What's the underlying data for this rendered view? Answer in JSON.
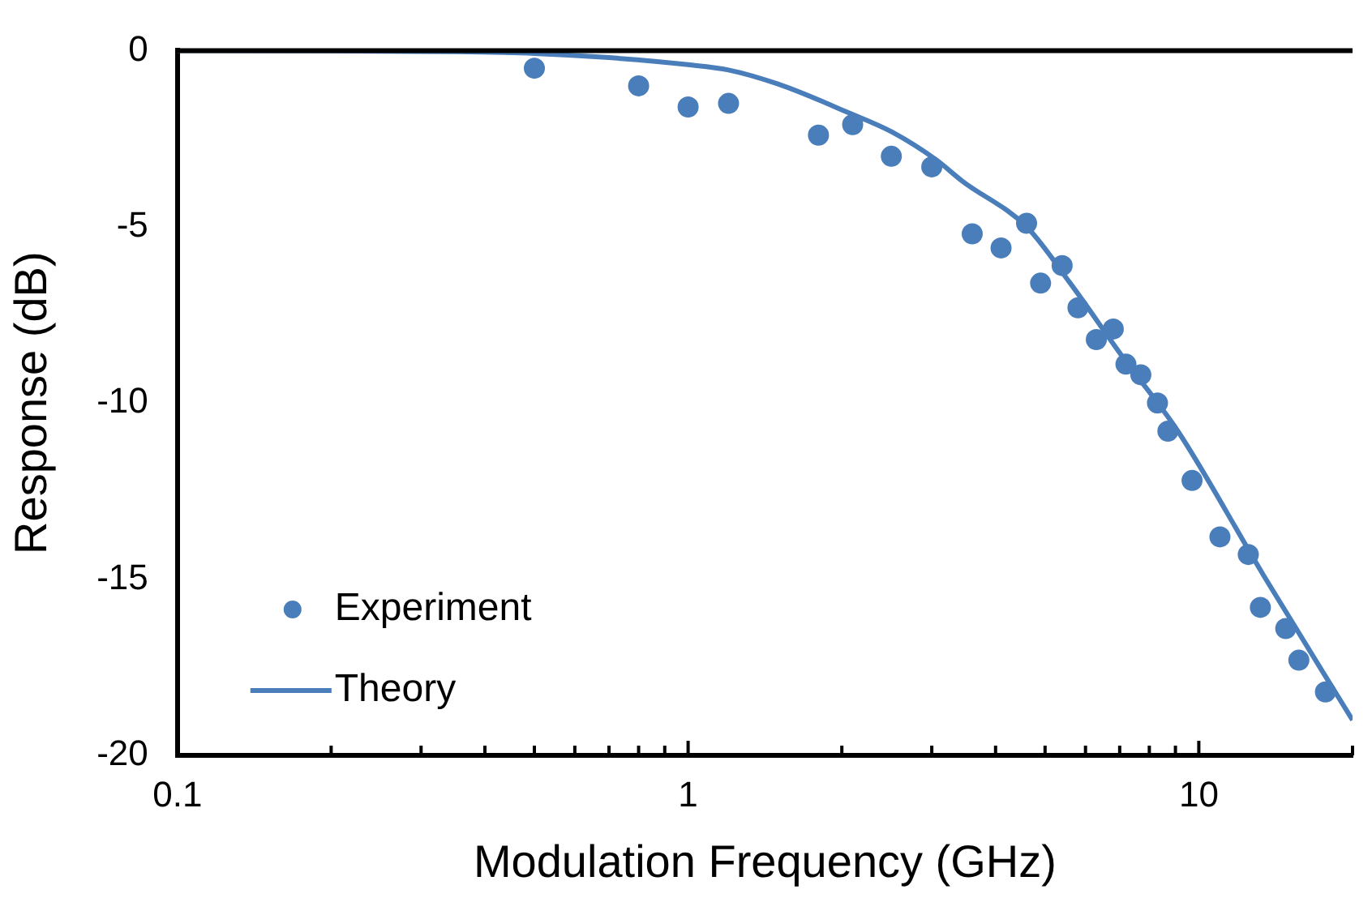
{
  "chart_data": {
    "type": "scatter",
    "xlabel": "Modulation Frequency (GHz)",
    "ylabel": "Response (dB)",
    "log": "x",
    "xlim": [
      0.1,
      20
    ],
    "xticks": [
      0.1,
      {
        "value": 0.2,
        "label": null
      },
      {
        "value": 0.3,
        "label": null
      },
      {
        "value": 0.4,
        "label": null
      },
      {
        "value": 0.5,
        "label": null
      },
      {
        "value": 0.6,
        "label": null
      },
      {
        "value": 0.7,
        "label": null
      },
      {
        "value": 0.8,
        "label": null
      },
      {
        "value": 0.9,
        "label": null
      },
      1,
      {
        "value": 2,
        "label": null
      },
      {
        "value": 3,
        "label": null
      },
      {
        "value": 4,
        "label": null
      },
      {
        "value": 5,
        "label": null
      },
      {
        "value": 6,
        "label": null
      },
      {
        "value": 7,
        "label": null
      },
      {
        "value": 8,
        "label": null
      },
      {
        "value": 9,
        "label": null
      },
      10,
      {
        "value": 20,
        "label": null
      }
    ],
    "ylim": [
      -20,
      0
    ],
    "yticks": [
      -20,
      -15,
      -10,
      -5,
      0
    ],
    "grid": false,
    "legend": "bottom left",
    "series": [
      {
        "name": "Experiment",
        "marker": "circle",
        "color": "#4a7ebb",
        "x": [
          0.5,
          0.8,
          1.0,
          1.2,
          1.8,
          2.1,
          2.5,
          3.0,
          3.6,
          4.1,
          4.6,
          4.9,
          5.4,
          5.8,
          6.3,
          6.8,
          7.2,
          7.7,
          8.3,
          8.7,
          9.7,
          11.0,
          12.5,
          13.2,
          14.8,
          15.7,
          17.7
        ],
        "values": [
          -0.5,
          -1.0,
          -1.6,
          -1.5,
          -2.4,
          -2.1,
          -3.0,
          -3.3,
          -5.2,
          -5.6,
          -4.9,
          -6.6,
          -6.1,
          -7.3,
          -8.2,
          -7.9,
          -8.9,
          -9.2,
          -10.0,
          -10.8,
          -12.2,
          -13.8,
          -14.3,
          -15.8,
          -16.4,
          -17.3,
          -18.2
        ]
      },
      {
        "name": "Theory",
        "type": "line",
        "marker": "none",
        "line_style": "solid",
        "color": "#4a7ebb",
        "x": [
          0.1,
          0.2,
          0.35,
          0.5,
          0.7,
          1.0,
          1.2,
          1.5,
          2.06,
          2.5,
          3.06,
          3.44,
          4.6,
          5.6,
          7.1,
          9.1,
          13.4,
          20
        ],
        "values": [
          0,
          -0.01,
          -0.03,
          -0.08,
          -0.2,
          -0.4,
          -0.55,
          -0.95,
          -1.76,
          -2.3,
          -3.1,
          -3.7,
          -5.0,
          -6.6,
          -8.7,
          -10.8,
          -14.9,
          -19.0
        ]
      }
    ]
  }
}
